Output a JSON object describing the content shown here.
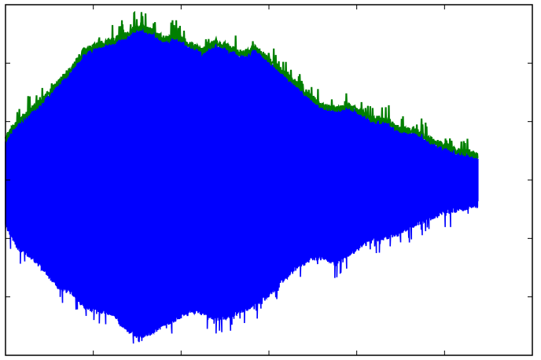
{
  "chart_data": {
    "type": "line",
    "title": "",
    "xlabel": "",
    "ylabel": "",
    "grid": false,
    "legend": "none",
    "xlim": [
      0,
      6
    ],
    "ylim": [
      -3,
      3
    ],
    "x_ticks": [
      1,
      2,
      3,
      4,
      5
    ],
    "y_ticks": [
      -2,
      -1,
      0,
      1,
      2
    ],
    "data_x_range": [
      0,
      5.38
    ],
    "series": [
      {
        "role": "waveform",
        "color": "#0000ff",
        "envelope_x": [
          0,
          0.15,
          0.3,
          0.45,
          0.6,
          0.75,
          0.9,
          1.05,
          1.2,
          1.35,
          1.5,
          1.65,
          1.8,
          1.95,
          2.1,
          2.25,
          2.4,
          2.55,
          2.7,
          2.85,
          3.0,
          3.15,
          3.3,
          3.45,
          3.6,
          3.75,
          3.9,
          4.05,
          4.2,
          4.35,
          4.5,
          4.65,
          4.8,
          4.95,
          5.1,
          5.25,
          5.38
        ],
        "envelope_upper": [
          0.85,
          1.15,
          1.35,
          1.55,
          1.8,
          2.05,
          2.35,
          2.45,
          2.5,
          2.6,
          2.75,
          2.7,
          2.55,
          2.6,
          2.45,
          2.35,
          2.5,
          2.4,
          2.3,
          2.4,
          2.2,
          2.0,
          1.8,
          1.6,
          1.4,
          1.35,
          1.4,
          1.3,
          1.15,
          1.15,
          1.0,
          1.0,
          0.85,
          0.75,
          0.65,
          0.6,
          0.55
        ],
        "envelope_lower": [
          -0.95,
          -1.35,
          -1.5,
          -1.75,
          -2.0,
          -2.1,
          -2.35,
          -2.4,
          -2.45,
          -2.7,
          -2.85,
          -2.8,
          -2.65,
          -2.55,
          -2.4,
          -2.45,
          -2.55,
          -2.5,
          -2.4,
          -2.3,
          -2.15,
          -1.9,
          -1.7,
          -1.55,
          -1.5,
          -1.6,
          -1.45,
          -1.3,
          -1.2,
          -1.15,
          -1.05,
          -0.95,
          -0.85,
          -0.75,
          -0.7,
          -0.65,
          -0.6
        ]
      },
      {
        "role": "upper-envelope",
        "color": "#007f00"
      }
    ]
  }
}
